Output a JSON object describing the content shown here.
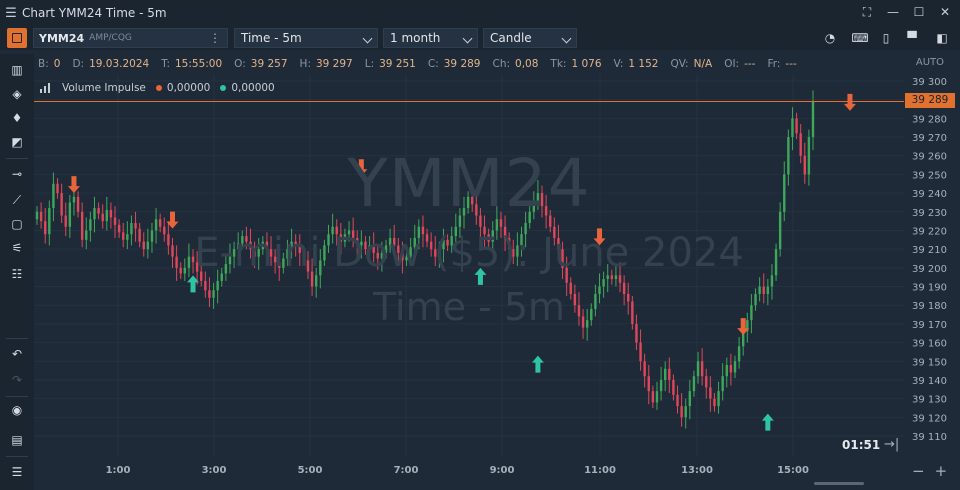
{
  "window": {
    "title": "Chart YMM24 Time - 5m"
  },
  "toolbar": {
    "symbol": "YMM24",
    "route": "AMP/CQG",
    "chart_type": "Time - 5m",
    "period": "1 month",
    "style": "Candle"
  },
  "info": [
    {
      "label": "B:",
      "value": "0"
    },
    {
      "label": "D:",
      "value": "19.03.2024"
    },
    {
      "label": "T:",
      "value": "15:55:00"
    },
    {
      "label": "O:",
      "value": "39 257"
    },
    {
      "label": "H:",
      "value": "39 297"
    },
    {
      "label": "L:",
      "value": "39 251"
    },
    {
      "label": "C:",
      "value": "39 289"
    },
    {
      "label": "Ch:",
      "value": "0,08"
    },
    {
      "label": "Tk:",
      "value": "1 076"
    },
    {
      "label": "V:",
      "value": "1 152"
    },
    {
      "label": "QV:",
      "value": "N/A"
    },
    {
      "label": "OI:",
      "value": "---"
    },
    {
      "label": "Fr:",
      "value": "---"
    }
  ],
  "scale_mode": "AUTO",
  "indicator": {
    "name": "Volume Impulse",
    "value1": "0,00000",
    "value2": "0,00000",
    "color1": "#e8643a",
    "color2": "#2ec4a4"
  },
  "watermark": {
    "symbol": "YMM24",
    "description": "E-mini Dow ($5): June 2024",
    "timeframe": "Time - 5m"
  },
  "last_price_label": "39 289",
  "timer": "01:51",
  "chart_data": {
    "type": "candlestick",
    "y_ticks": [
      "39 300",
      "39 290",
      "39 280",
      "39 270",
      "39 260",
      "39 250",
      "39 240",
      "39 230",
      "39 220",
      "39 210",
      "39 200",
      "39 190",
      "39 180",
      "39 170",
      "39 160",
      "39 150",
      "39 140",
      "39 130",
      "39 120",
      "39 110"
    ],
    "x_ticks": [
      "1:00",
      "3:00",
      "5:00",
      "7:00",
      "9:00",
      "11:00",
      "13:00",
      "15:00"
    ],
    "ylim": [
      39105,
      39305
    ],
    "last_price": 39289,
    "up_color": "#3ea85a",
    "down_color": "#e0475a",
    "closes": [
      39230,
      39225,
      39218,
      39232,
      39245,
      39240,
      39228,
      39222,
      39235,
      39238,
      39230,
      39215,
      39220,
      39226,
      39232,
      39229,
      39225,
      39231,
      39227,
      39223,
      39219,
      39215,
      39218,
      39224,
      39221,
      39214,
      39210,
      39214,
      39220,
      39226,
      39222,
      39218,
      39212,
      39206,
      39200,
      39197,
      39200,
      39206,
      39203,
      39198,
      39193,
      39188,
      39184,
      39188,
      39193,
      39197,
      39202,
      39206,
      39210,
      39213,
      39217,
      39214,
      39210,
      39206,
      39210,
      39214,
      39210,
      39206,
      39203,
      39200,
      39205,
      39210,
      39214,
      39212,
      39208,
      39204,
      39198,
      39190,
      39196,
      39204,
      39212,
      39218,
      39222,
      39218,
      39214,
      39218,
      39220,
      39216,
      39212,
      39214,
      39210,
      39212,
      39208,
      39205,
      39208,
      39212,
      39216,
      39212,
      39208,
      39204,
      39206,
      39211,
      39216,
      39222,
      39218,
      39214,
      39210,
      39206,
      39210,
      39215,
      39212,
      39217,
      39222,
      39228,
      39232,
      39238,
      39234,
      39228,
      39222,
      39218,
      39214,
      39220,
      39226,
      39222,
      39216,
      39210,
      39206,
      39212,
      39218,
      39224,
      39230,
      39236,
      39240,
      39233,
      39228,
      39222,
      39216,
      39210,
      39200,
      39192,
      39186,
      39180,
      39174,
      39168,
      39172,
      39178,
      39186,
      39190,
      39194,
      39196,
      39194,
      39196,
      39192,
      39186,
      39182,
      39170,
      39160,
      39150,
      39142,
      39134,
      39128,
      39134,
      39140,
      39146,
      39140,
      39132,
      39126,
      39120,
      39126,
      39134,
      39142,
      39150,
      39142,
      39136,
      39130,
      39126,
      39134,
      39142,
      39148,
      39144,
      39150,
      39158,
      39166,
      39172,
      39180,
      39186,
      39190,
      39186,
      39190,
      39196,
      39210,
      39230,
      39250,
      39270,
      39280,
      39272,
      39260,
      39250,
      39270,
      39289
    ],
    "up_arrows": [
      [
        38,
        39196
      ],
      [
        108,
        39200
      ],
      [
        122,
        39153
      ],
      [
        178,
        39122
      ]
    ],
    "down_arrows": [
      [
        9,
        39240
      ],
      [
        33,
        39221
      ],
      [
        79,
        39249
      ],
      [
        137,
        39212
      ],
      [
        172,
        39164
      ],
      [
        198,
        39284
      ]
    ],
    "legend": "none",
    "grid": true
  }
}
